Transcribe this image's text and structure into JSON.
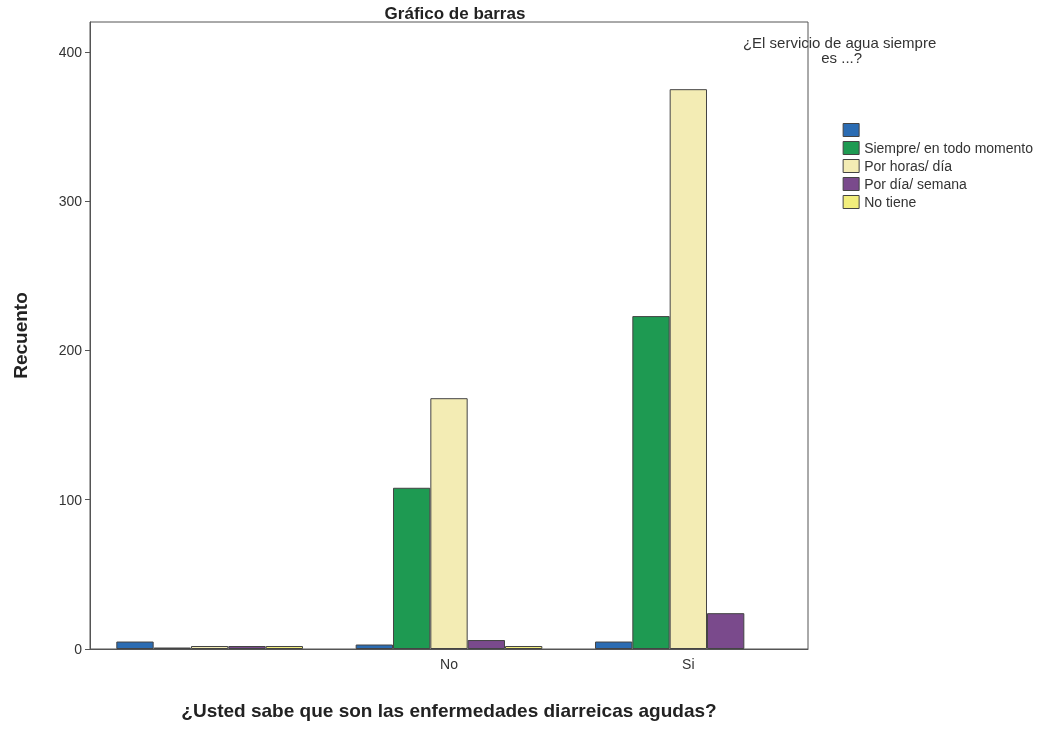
{
  "chart_data": {
    "type": "bar",
    "title": "Gráfico de barras",
    "xlabel": "¿Usted sabe que son las enfermedades diarreicas agudas?",
    "ylabel": "Recuento",
    "legend_title": "¿El servicio de agua siempre es ...?",
    "categories": [
      null,
      "No",
      "Si"
    ],
    "series": [
      {
        "color": "#2b6cb3",
        "values": [
          5,
          3,
          5
        ]
      },
      {
        "name": "Siempre/ en todo momento",
        "color": "#1e9a52",
        "values": [
          1,
          108,
          223
        ]
      },
      {
        "name": "Por horas/ día",
        "color": "#f3ecb4",
        "values": [
          2,
          168,
          375
        ]
      },
      {
        "name": "Por día/ semana",
        "color": "#7a4a8c",
        "values": [
          2,
          6,
          24
        ]
      },
      {
        "name": "No tiene",
        "color": "#f2ee7c",
        "values": [
          2,
          2,
          null
        ]
      }
    ],
    "ylim": [
      0,
      420
    ],
    "yticks": [
      0,
      100,
      200,
      300,
      400
    ],
    "grid": false,
    "legend": "top right"
  }
}
